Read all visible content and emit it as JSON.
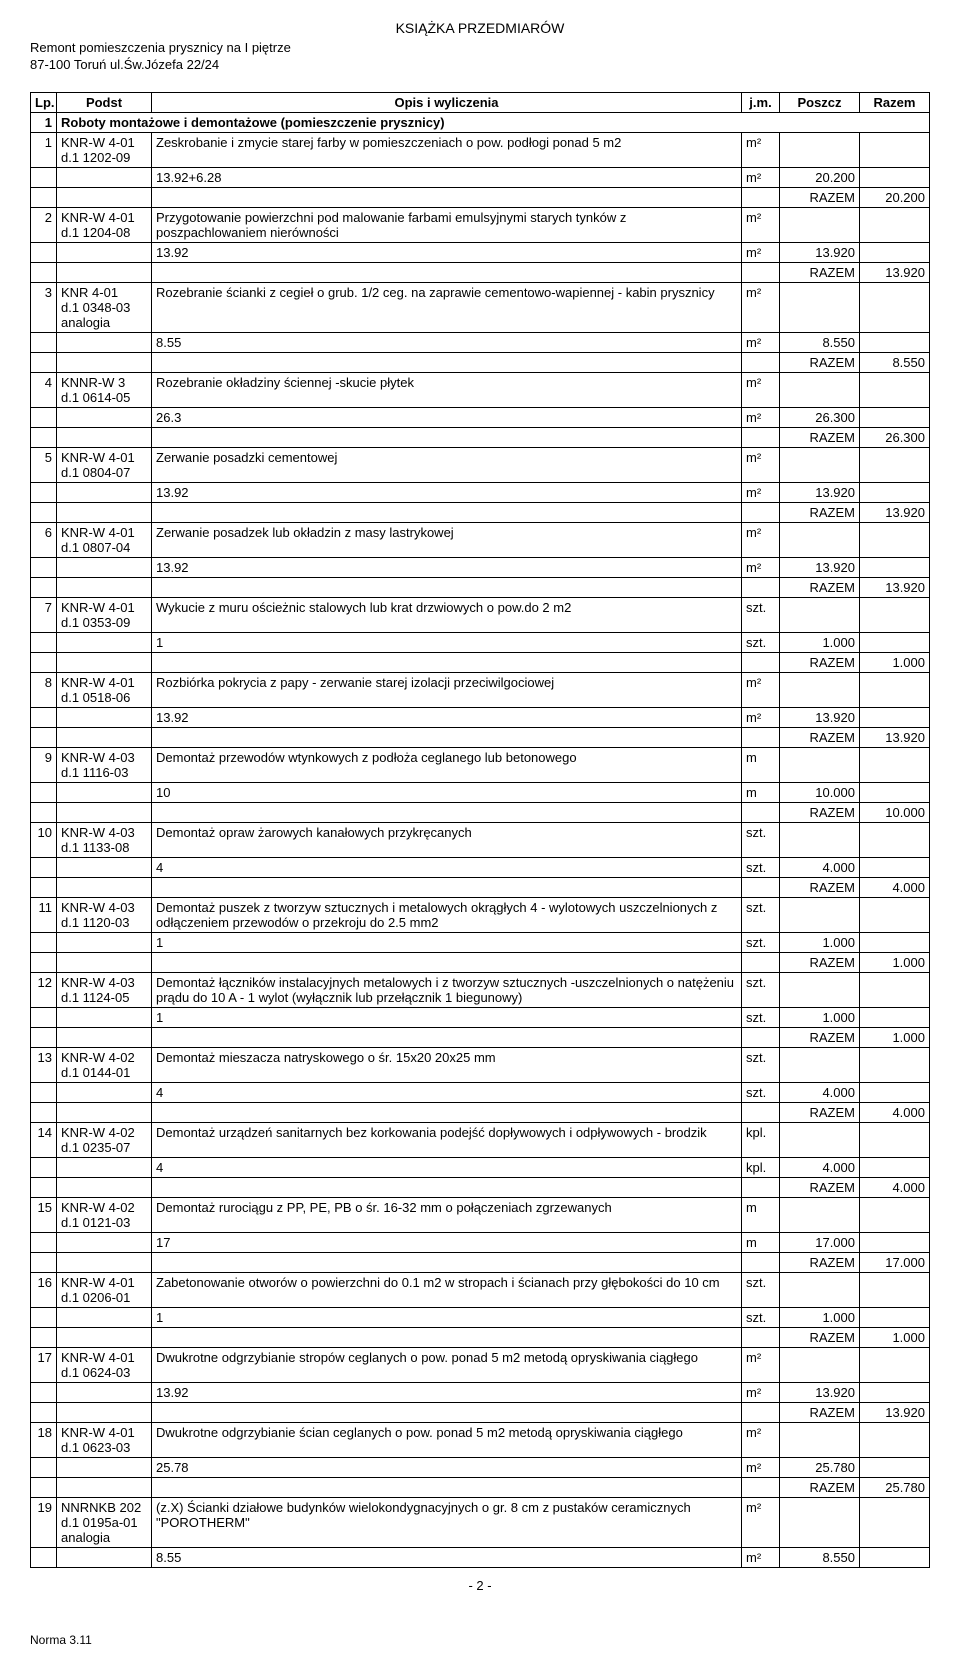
{
  "header": {
    "title": "KSIĄŻKA PRZEDMIARÓW",
    "subtitle": "Remont pomieszczenia prysznicy na I piętrze",
    "address": "87-100 Toruń ul.Św.Józefa 22/24"
  },
  "columns": {
    "lp": "Lp.",
    "podst": "Podst",
    "opis": "Opis i wyliczenia",
    "jm": "j.m.",
    "poszcz": "Poszcz",
    "razem": "Razem"
  },
  "section": {
    "num": "1",
    "title": "Roboty montażowe i demontażowe (pomieszczenie prysznicy)"
  },
  "razem_label": "RAZEM",
  "items": [
    {
      "lp": "1",
      "podst": "KNR-W 4-01",
      "podst2": "d.1 1202-09",
      "opis": "Zeskrobanie i zmycie starej farby w pomieszczeniach o pow. podłogi ponad 5 m2",
      "jm": "m²",
      "calc": "13.92+6.28",
      "calc_jm": "m²",
      "calc_val": "20.200",
      "razem": "20.200"
    },
    {
      "lp": "2",
      "podst": "KNR-W 4-01",
      "podst2": "d.1 1204-08",
      "opis": "Przygotowanie powierzchni pod malowanie farbami emulsyjnymi starych tynków  z poszpachlowaniem nierówności",
      "jm": "m²",
      "calc": "13.92",
      "calc_jm": "m²",
      "calc_val": "13.920",
      "razem": "13.920"
    },
    {
      "lp": "3",
      "podst": "KNR 4-01",
      "podst2": "d.1 0348-03",
      "podst3": "analogia",
      "opis": "Rozebranie ścianki z cegieł o grub. 1/2 ceg. na zaprawie cementowo-wapiennej - kabin prysznicy",
      "jm": "m²",
      "calc": "8.55",
      "calc_jm": "m²",
      "calc_val": "8.550",
      "razem": "8.550"
    },
    {
      "lp": "4",
      "podst": "KNNR-W 3",
      "podst2": "d.1 0614-05",
      "opis": "Rozebranie okładziny ściennej -skucie płytek",
      "jm": "m²",
      "calc": "26.3",
      "calc_jm": "m²",
      "calc_val": "26.300",
      "razem": "26.300"
    },
    {
      "lp": "5",
      "podst": "KNR-W 4-01",
      "podst2": "d.1 0804-07",
      "opis": "Zerwanie posadzki cementowej",
      "jm": "m²",
      "calc": "13.92",
      "calc_jm": "m²",
      "calc_val": "13.920",
      "razem": "13.920"
    },
    {
      "lp": "6",
      "podst": "KNR-W 4-01",
      "podst2": "d.1 0807-04",
      "opis": "Zerwanie posadzek lub okładzin z masy lastrykowej",
      "jm": "m²",
      "calc": "13.92",
      "calc_jm": "m²",
      "calc_val": "13.920",
      "razem": "13.920"
    },
    {
      "lp": "7",
      "podst": "KNR-W 4-01",
      "podst2": "d.1 0353-09",
      "opis": "Wykucie z muru ościeżnic stalowych lub krat drzwiowych o pow.do 2 m2",
      "jm": "szt.",
      "calc": "1",
      "calc_jm": "szt.",
      "calc_val": "1.000",
      "razem": "1.000"
    },
    {
      "lp": "8",
      "podst": "KNR-W 4-01",
      "podst2": "d.1 0518-06",
      "opis": "Rozbiórka pokrycia z papy - zerwanie starej izolacji przeciwilgociowej",
      "jm": "m²",
      "calc": "13.92",
      "calc_jm": "m²",
      "calc_val": "13.920",
      "razem": "13.920"
    },
    {
      "lp": "9",
      "podst": "KNR-W 4-03",
      "podst2": "d.1 1116-03",
      "opis": "Demontaż przewodów wtynkowych z podłoża ceglanego lub betonowego",
      "jm": "m",
      "calc": "10",
      "calc_jm": "m",
      "calc_val": "10.000",
      "razem": "10.000"
    },
    {
      "lp": "10",
      "podst": "KNR-W 4-03",
      "podst2": "d.1 1133-08",
      "opis": "Demontaż opraw żarowych kanałowych przykręcanych",
      "jm": "szt.",
      "calc": "4",
      "calc_jm": "szt.",
      "calc_val": "4.000",
      "razem": "4.000"
    },
    {
      "lp": "11",
      "podst": "KNR-W 4-03",
      "podst2": "d.1 1120-03",
      "opis": "Demontaż puszek z tworzyw sztucznych i metalowych okrągłych 4 - wylotowych uszczelnionych z odłączeniem przewodów o przekroju do 2.5 mm2",
      "jm": "szt.",
      "calc": "1",
      "calc_jm": "szt.",
      "calc_val": "1.000",
      "razem": "1.000"
    },
    {
      "lp": "12",
      "podst": "KNR-W 4-03",
      "podst2": "d.1 1124-05",
      "opis": "Demontaż łączników instalacyjnych metalowych i z tworzyw sztucznych -uszczelnionych o natężeniu prądu do 10 A - 1 wylot (wyłącznik lub przełącznik 1 biegunowy)",
      "jm": "szt.",
      "calc": "1",
      "calc_jm": "szt.",
      "calc_val": "1.000",
      "razem": "1.000"
    },
    {
      "lp": "13",
      "podst": "KNR-W 4-02",
      "podst2": "d.1 0144-01",
      "opis": "Demontaż mieszacza natryskowego o śr. 15x20 20x25 mm",
      "jm": "szt.",
      "calc": "4",
      "calc_jm": "szt.",
      "calc_val": "4.000",
      "razem": "4.000"
    },
    {
      "lp": "14",
      "podst": "KNR-W 4-02",
      "podst2": "d.1 0235-07",
      "opis": "Demontaż urządzeń sanitarnych bez korkowania podejść dopływowych i odpływowych - brodzik",
      "jm": "kpl.",
      "calc": "4",
      "calc_jm": "kpl.",
      "calc_val": "4.000",
      "razem": "4.000"
    },
    {
      "lp": "15",
      "podst": "KNR-W 4-02",
      "podst2": "d.1 0121-03",
      "opis": "Demontaż rurociągu z PP, PE, PB o śr. 16-32 mm o połączeniach zgrzewanych",
      "jm": "m",
      "calc": "17",
      "calc_jm": "m",
      "calc_val": "17.000",
      "razem": "17.000"
    },
    {
      "lp": "16",
      "podst": "KNR-W 4-01",
      "podst2": "d.1 0206-01",
      "opis": "Zabetonowanie otworów o powierzchni do 0.1 m2 w stropach i ścianach przy głębokości do 10 cm",
      "jm": "szt.",
      "calc": "1",
      "calc_jm": "szt.",
      "calc_val": "1.000",
      "razem": "1.000"
    },
    {
      "lp": "17",
      "podst": "KNR-W 4-01",
      "podst2": "d.1 0624-03",
      "opis": "Dwukrotne odgrzybianie stropów ceglanych o pow. ponad 5 m2 metodą opryskiwania ciągłego",
      "jm": "m²",
      "calc": "13.92",
      "calc_jm": "m²",
      "calc_val": "13.920",
      "razem": "13.920"
    },
    {
      "lp": "18",
      "podst": "KNR-W 4-01",
      "podst2": "d.1 0623-03",
      "opis": "Dwukrotne odgrzybianie ścian ceglanych o pow. ponad 5 m2 metodą opryskiwania ciągłego",
      "jm": "m²",
      "calc": "25.78",
      "calc_jm": "m²",
      "calc_val": "25.780",
      "razem": "25.780"
    },
    {
      "lp": "19",
      "podst": "NNRNKB 202",
      "podst2": "d.1 0195a-01",
      "podst3": "analogia",
      "opis": "(z.X) Ścianki działowe budynków wielokondygnacyjnych o gr. 8 cm z pustaków ceramicznych \"POROTHERM\"",
      "jm": "m²",
      "calc": "8.55",
      "calc_jm": "m²",
      "calc_val": "8.550",
      "razem": ""
    }
  ],
  "footer": {
    "page": "- 2 -",
    "norma": "Norma 3.11"
  }
}
